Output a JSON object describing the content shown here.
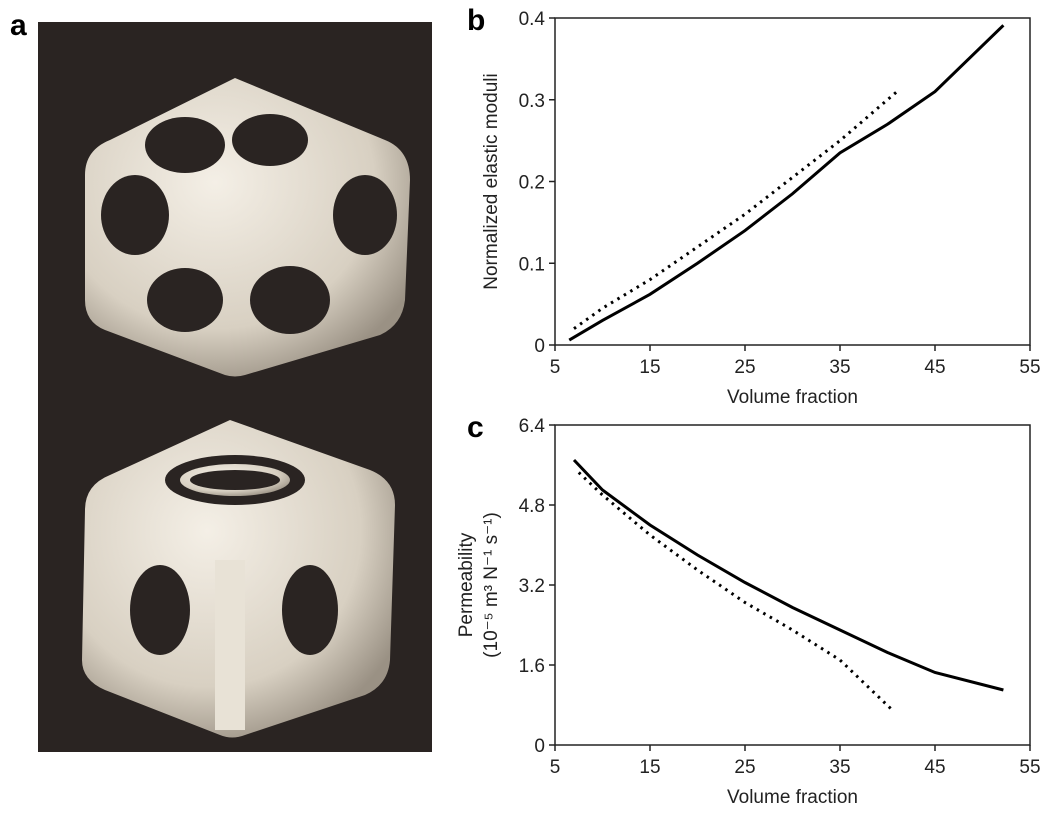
{
  "image_panel": {
    "label": "a"
  },
  "chart_data": [
    {
      "type": "line",
      "panel_label": "b",
      "xlabel": "Volume fraction",
      "ylabel": [
        "Normalized elastic moduli"
      ],
      "xlim": [
        5,
        55
      ],
      "xticks": [
        5,
        15,
        25,
        35,
        45,
        55
      ],
      "ylim": [
        0,
        0.4
      ],
      "yticks": [
        0,
        0.1,
        0.2,
        0.3,
        0.4
      ],
      "series": [
        {
          "color": "#000000",
          "dash": "solid",
          "x": [
            6.5,
            10,
            15,
            20,
            25,
            30,
            35,
            40,
            45,
            52.2
          ],
          "values": [
            0.006,
            0.03,
            0.062,
            0.1,
            0.14,
            0.185,
            0.235,
            0.27,
            0.31,
            0.391
          ]
        },
        {
          "color": "#000000",
          "dash": "dotted",
          "x": [
            7,
            10,
            15,
            20,
            25,
            30,
            35,
            41
          ],
          "values": [
            0.02,
            0.045,
            0.08,
            0.12,
            0.16,
            0.205,
            0.25,
            0.31
          ]
        }
      ]
    },
    {
      "type": "line",
      "panel_label": "c",
      "xlabel": "Volume fraction",
      "ylabel": [
        "Permeability",
        "(10⁻⁵ m³ N⁻¹ s⁻¹)"
      ],
      "xlim": [
        5,
        55
      ],
      "xticks": [
        5,
        15,
        25,
        35,
        45,
        55
      ],
      "ylim": [
        0,
        6.4
      ],
      "yticks": [
        0,
        1.6,
        3.2,
        4.8,
        6.4
      ],
      "series": [
        {
          "color": "#000000",
          "dash": "solid",
          "x": [
            7,
            10,
            15,
            20,
            25,
            30,
            35,
            40,
            45,
            52.2
          ],
          "values": [
            5.7,
            5.1,
            4.4,
            3.8,
            3.25,
            2.75,
            2.3,
            1.85,
            1.45,
            1.1
          ]
        },
        {
          "color": "#000000",
          "dash": "dotted",
          "x": [
            7.5,
            10,
            15,
            20,
            25,
            30,
            35,
            40.5
          ],
          "values": [
            5.45,
            5.0,
            4.2,
            3.5,
            2.85,
            2.3,
            1.7,
            0.7
          ]
        }
      ]
    }
  ]
}
